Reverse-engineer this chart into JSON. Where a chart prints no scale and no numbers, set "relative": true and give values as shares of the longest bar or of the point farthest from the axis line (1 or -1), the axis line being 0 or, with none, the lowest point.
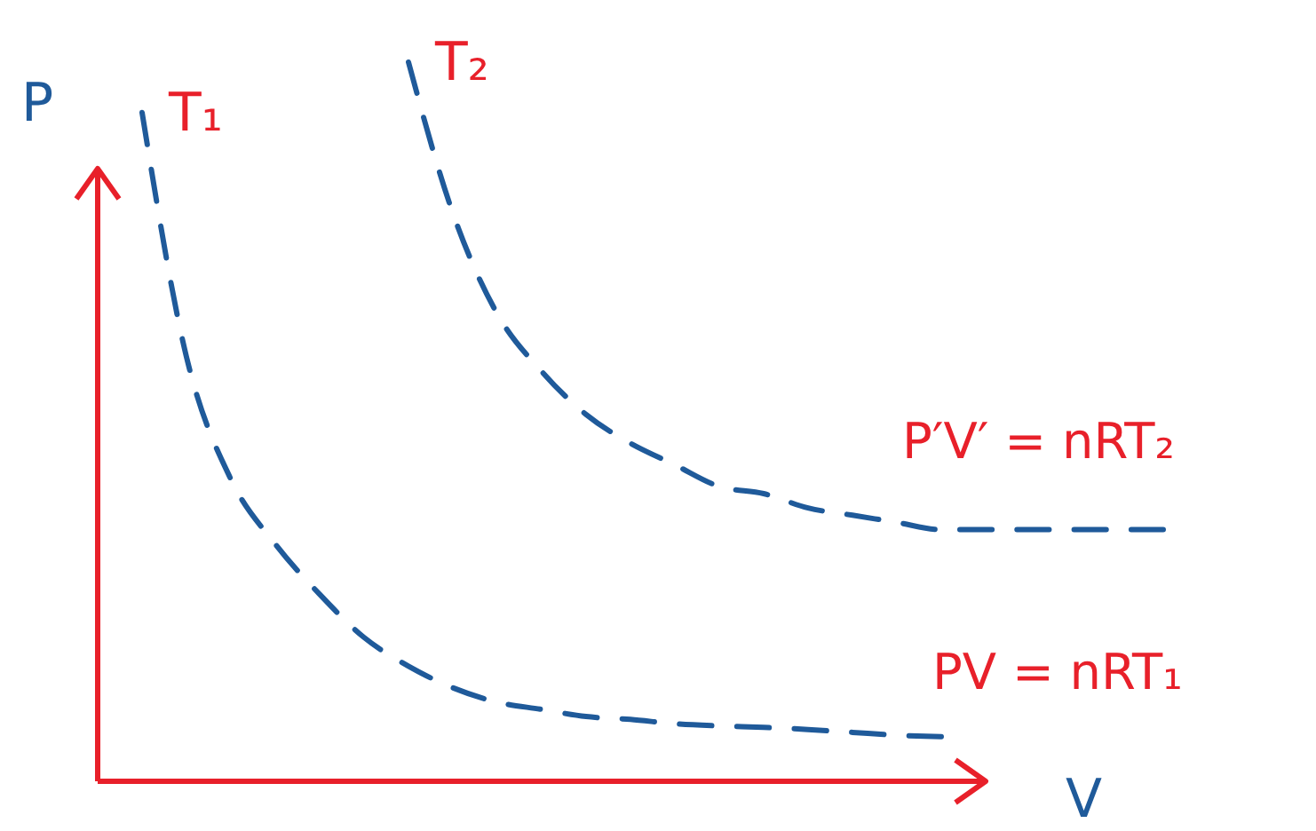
{
  "chart_data": {
    "type": "line",
    "relative": true,
    "xlabel": "V",
    "ylabel": "P",
    "categories": [
      null,
      null,
      null,
      null,
      null,
      null,
      null,
      null,
      null,
      null,
      null,
      null,
      null,
      null,
      null,
      null,
      null,
      null,
      null,
      null,
      null,
      null,
      null,
      null,
      null
    ],
    "series": [
      {
        "name": "T₁",
        "color": "#1f5a9a",
        "values": [
          null,
          0.93,
          0.59,
          0.42,
          0.33,
          0.26,
          0.2,
          0.16,
          0.13,
          0.11,
          0.1,
          0.09,
          0.086,
          0.08,
          0.077,
          0.075,
          0.072,
          0.068,
          0.064,
          0.062,
          null,
          null,
          null,
          null,
          null
        ]
      },
      {
        "name": "T₂",
        "color": "#1f5a9a",
        "values": [
          null,
          null,
          null,
          null,
          null,
          null,
          null,
          1.0,
          0.79,
          0.65,
          0.57,
          0.51,
          0.47,
          0.44,
          0.41,
          0.4,
          0.38,
          0.37,
          0.36,
          0.35,
          0.35,
          0.35,
          0.35,
          0.35,
          0.35
        ]
      }
    ],
    "annotations": [
      "P′V′ = nRT₂",
      "PV = nRT₁"
    ],
    "line_style": "dashed",
    "marker": "none",
    "legend": false
  }
}
